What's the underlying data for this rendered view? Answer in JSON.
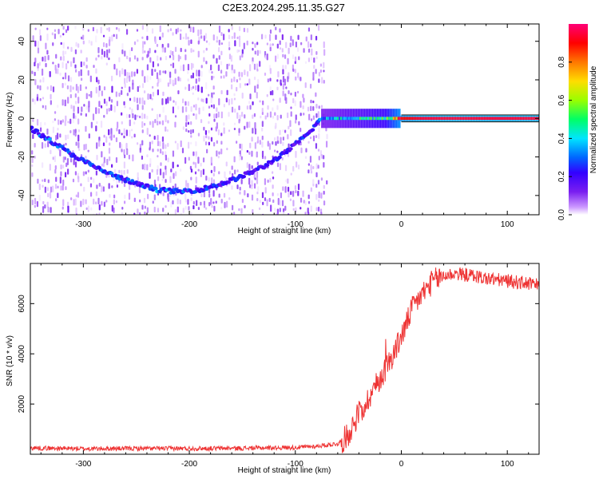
{
  "figure_title": "C2E3.2024.295.11.35.G27",
  "colors": {
    "snr_line": "#ee3333",
    "spectrogram_points": "#4400cc",
    "colormap": [
      "#ffffff",
      "#cc99ff",
      "#7a1ff0",
      "#3300ff",
      "#0066ff",
      "#00e5ff",
      "#00ff66",
      "#99ff00",
      "#ffdd00",
      "#ff7700",
      "#ff0000",
      "#ff0077"
    ]
  },
  "chart_data": [
    {
      "type": "heatmap",
      "title": "",
      "xlabel": "Height of straight line (km)",
      "ylabel": "Frequency (Hz)",
      "xlim": [
        -350,
        130
      ],
      "ylim": [
        -50,
        49
      ],
      "x_ticks": [
        "-300",
        "-200",
        "-100",
        "0",
        "100"
      ],
      "x_tick_values": [
        -300,
        -200,
        -100,
        0,
        100
      ],
      "y_ticks": [
        "-40",
        "-20",
        "0",
        "20",
        "40"
      ],
      "y_tick_values": [
        -40,
        -20,
        0,
        20,
        40
      ],
      "colorbar": {
        "label": "Normalized spectral amplitude",
        "range": [
          0,
          1
        ],
        "ticks": [
          "0.0",
          "0.2",
          "0.4",
          "0.6",
          "0.8"
        ],
        "tick_values": [
          0,
          0.2,
          0.4,
          0.6,
          0.8
        ]
      },
      "noise_region_x": [
        -350,
        -70
      ],
      "arc": {
        "x": [
          -350,
          -330,
          -310,
          -290,
          -270,
          -250,
          -230,
          -210,
          -190,
          -170,
          -150,
          -130,
          -110,
          -90,
          -75
        ],
        "y": [
          -5,
          -12,
          -19,
          -25,
          -30,
          -34,
          -37,
          -38,
          -37,
          -34,
          -30,
          -25,
          -18,
          -9,
          0
        ],
        "amplitude": [
          0.3,
          0.35,
          0.3,
          0.3,
          0.3,
          0.28,
          0.35,
          0.3,
          0.28,
          0.28,
          0.25,
          0.25,
          0.25,
          0.28,
          0.35
        ]
      },
      "carrier": {
        "x": [
          -75,
          -60,
          -45,
          -30,
          -15,
          0,
          20,
          50,
          80,
          110,
          130
        ],
        "y": [
          0,
          0,
          0,
          0,
          0,
          0,
          0,
          0,
          0,
          0,
          0
        ],
        "amplitude": [
          0.4,
          0.45,
          0.5,
          0.55,
          0.6,
          0.9,
          0.95,
          0.95,
          0.95,
          0.95,
          0.95
        ]
      }
    },
    {
      "type": "line",
      "title": "",
      "xlabel": "Height of straight line (km)",
      "ylabel": "SNR (10 * v/v)",
      "xlim": [
        -350,
        130
      ],
      "ylim": [
        0,
        7600
      ],
      "x_ticks": [
        "-300",
        "-200",
        "-100",
        "0",
        "100"
      ],
      "x_tick_values": [
        -300,
        -200,
        -100,
        0,
        100
      ],
      "y_ticks": [
        "2000",
        "4000",
        "6000"
      ],
      "y_tick_values": [
        2000,
        4000,
        6000
      ],
      "series": [
        {
          "x": [
            -350,
            -300,
            -250,
            -200,
            -150,
            -100,
            -80,
            -60,
            -55,
            -50,
            -45,
            -40,
            -35,
            -30,
            -25,
            -20,
            -15,
            -10,
            -5,
            0,
            5,
            10,
            20,
            30,
            40,
            50,
            60,
            70,
            80,
            90,
            100,
            110,
            120,
            130
          ],
          "y": [
            250,
            220,
            230,
            230,
            240,
            270,
            320,
            420,
            550,
            800,
            1200,
            1700,
            1900,
            2300,
            2700,
            3000,
            3400,
            3800,
            4200,
            4700,
            5200,
            5800,
            6400,
            6900,
            7100,
            7200,
            7150,
            7100,
            7000,
            6950,
            6900,
            6850,
            6800,
            6700
          ]
        }
      ]
    }
  ]
}
